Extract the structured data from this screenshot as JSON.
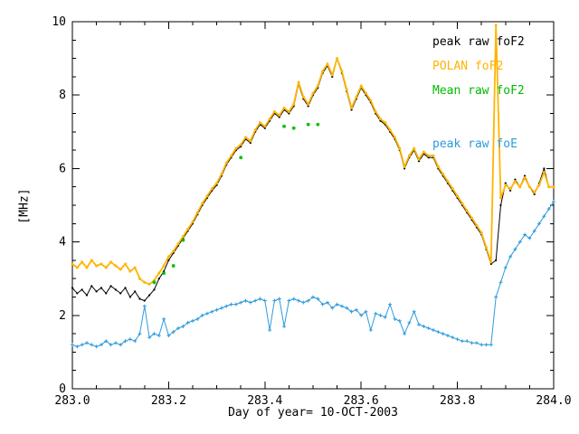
{
  "chart_data": {
    "type": "line",
    "title": "",
    "xlabel": "Day of year= 10-OCT-2003",
    "ylabel": "[MHz]",
    "xlim": [
      283.0,
      284.0
    ],
    "ylim": [
      0,
      10
    ],
    "xticks": [
      283.0,
      283.2,
      283.4,
      283.6,
      283.8,
      284.0
    ],
    "xtick_labels": [
      "283.0",
      "283.2",
      "283.4",
      "283.6",
      "283.8",
      "284.0"
    ],
    "yticks": [
      0,
      2,
      4,
      6,
      8,
      10
    ],
    "ytick_labels": [
      "0",
      "2",
      "4",
      "6",
      "8",
      "10"
    ],
    "x_minor_step": 0.05,
    "y_minor_step": 0.5,
    "grid": false,
    "legend_position": "top-right-inside",
    "frame_color": "#000000",
    "background": "#ffffff",
    "x_start": 283.0,
    "x_step": 0.01,
    "series": [
      {
        "name": "peak raw foF2",
        "color": "#000000",
        "marker": "dot",
        "line_width": 1,
        "values": [
          2.75,
          2.6,
          2.7,
          2.55,
          2.8,
          2.65,
          2.75,
          2.6,
          2.8,
          2.7,
          2.6,
          2.75,
          2.5,
          2.65,
          2.45,
          2.4,
          2.55,
          2.7,
          3.0,
          3.2,
          3.5,
          3.7,
          3.9,
          4.1,
          4.3,
          4.5,
          4.75,
          5.0,
          5.2,
          5.4,
          5.55,
          5.8,
          6.1,
          6.3,
          6.5,
          6.6,
          6.8,
          6.7,
          7.0,
          7.2,
          7.1,
          7.3,
          7.5,
          7.4,
          7.6,
          7.5,
          7.7,
          8.3,
          7.9,
          7.7,
          8.0,
          8.2,
          8.6,
          8.8,
          8.5,
          9.0,
          8.6,
          8.1,
          7.6,
          7.9,
          8.2,
          8.0,
          7.8,
          7.5,
          7.3,
          7.2,
          7.0,
          6.8,
          6.5,
          6.0,
          6.3,
          6.5,
          6.2,
          6.4,
          6.3,
          6.3,
          6.0,
          5.8,
          5.6,
          5.4,
          5.2,
          5.0,
          4.8,
          4.6,
          4.4,
          4.2,
          3.8,
          3.4,
          3.5,
          5.0,
          5.6,
          5.4,
          5.7,
          5.5,
          5.8,
          5.5,
          5.3,
          5.6,
          6.0,
          5.5,
          5.5
        ]
      },
      {
        "name": "POLAN foF2",
        "color": "#FFB400",
        "marker": "dot",
        "line_width": 1.8,
        "values": [
          3.4,
          3.3,
          3.45,
          3.3,
          3.5,
          3.35,
          3.4,
          3.3,
          3.45,
          3.35,
          3.25,
          3.4,
          3.2,
          3.3,
          3.0,
          2.9,
          2.85,
          2.95,
          3.15,
          3.35,
          3.6,
          3.75,
          3.95,
          4.15,
          4.35,
          4.55,
          4.8,
          5.05,
          5.25,
          5.45,
          5.6,
          5.85,
          6.15,
          6.35,
          6.55,
          6.65,
          6.85,
          6.75,
          7.05,
          7.25,
          7.15,
          7.35,
          7.55,
          7.45,
          7.65,
          7.55,
          7.75,
          8.35,
          7.95,
          7.75,
          8.05,
          8.25,
          8.65,
          8.85,
          8.55,
          9.0,
          8.65,
          8.15,
          7.65,
          7.95,
          8.25,
          8.05,
          7.85,
          7.55,
          7.35,
          7.25,
          7.05,
          6.85,
          6.55,
          6.05,
          6.35,
          6.55,
          6.25,
          6.45,
          6.35,
          6.35,
          6.05,
          5.85,
          5.65,
          5.45,
          5.25,
          5.05,
          4.85,
          4.65,
          4.45,
          4.25,
          3.85,
          3.45,
          9.9,
          5.2,
          5.55,
          5.45,
          5.65,
          5.5,
          5.75,
          5.5,
          5.35,
          5.55,
          5.9,
          5.5,
          5.5
        ]
      },
      {
        "name": "Mean raw foF2",
        "color": "#00BB00",
        "marker": "star",
        "line_width": 0,
        "points": [
          [
            283.17,
            2.9
          ],
          [
            283.19,
            3.15
          ],
          [
            283.21,
            3.35
          ],
          [
            283.23,
            4.05
          ],
          [
            283.35,
            6.3
          ],
          [
            283.44,
            7.15
          ],
          [
            283.46,
            7.1
          ],
          [
            283.49,
            7.2
          ],
          [
            283.51,
            7.2
          ]
        ]
      },
      {
        "name": "peak raw foE",
        "color": "#2F9BDB",
        "marker": "plus",
        "line_width": 1,
        "values": [
          1.2,
          1.15,
          1.2,
          1.25,
          1.2,
          1.15,
          1.2,
          1.3,
          1.2,
          1.25,
          1.2,
          1.3,
          1.35,
          1.3,
          1.5,
          2.25,
          1.4,
          1.5,
          1.45,
          1.9,
          1.45,
          1.55,
          1.65,
          1.7,
          1.8,
          1.85,
          1.9,
          2.0,
          2.05,
          2.1,
          2.15,
          2.2,
          2.25,
          2.3,
          2.3,
          2.35,
          2.4,
          2.35,
          2.4,
          2.45,
          2.4,
          1.6,
          2.4,
          2.45,
          1.7,
          2.4,
          2.45,
          2.4,
          2.35,
          2.4,
          2.5,
          2.45,
          2.3,
          2.35,
          2.2,
          2.3,
          2.25,
          2.2,
          2.1,
          2.15,
          2.0,
          2.1,
          1.6,
          2.05,
          2.0,
          1.95,
          2.3,
          1.9,
          1.85,
          1.5,
          1.8,
          2.1,
          1.75,
          1.7,
          1.65,
          1.6,
          1.55,
          1.5,
          1.45,
          1.4,
          1.35,
          1.3,
          1.3,
          1.25,
          1.25,
          1.2,
          1.2,
          1.2,
          2.5,
          2.9,
          3.3,
          3.6,
          3.8,
          4.0,
          4.2,
          4.1,
          4.3,
          4.5,
          4.7,
          4.9,
          5.1
        ]
      }
    ]
  }
}
